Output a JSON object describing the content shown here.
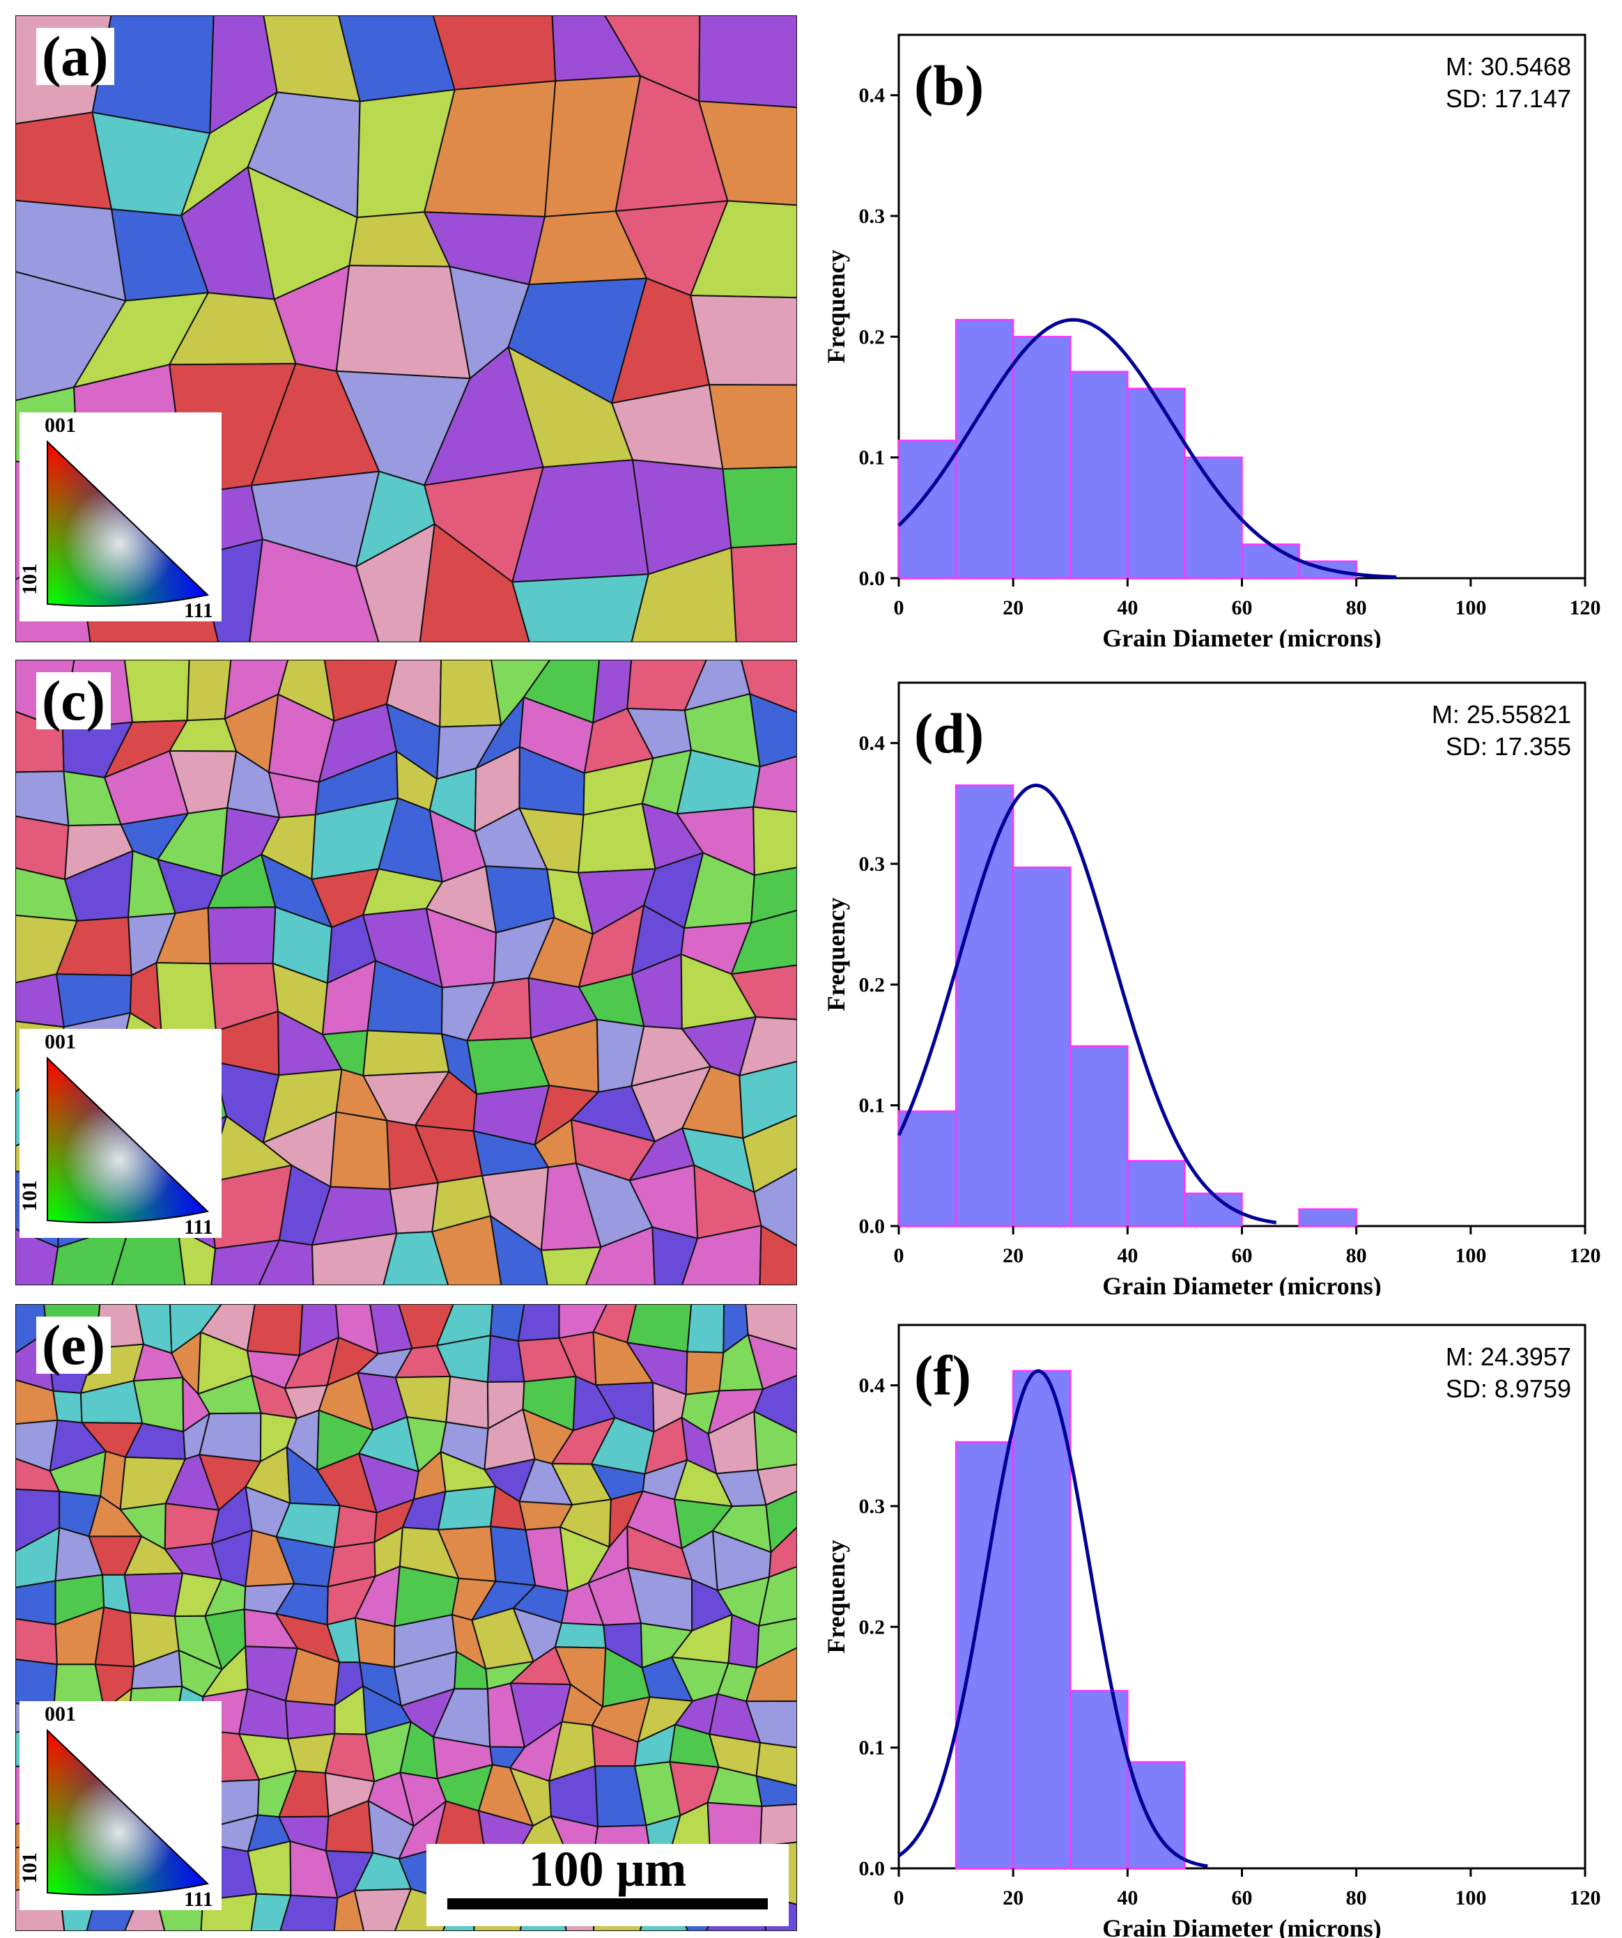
{
  "panels": {
    "a": {
      "label": "(a)"
    },
    "c": {
      "label": "(c)"
    },
    "e": {
      "label": "(e)"
    }
  },
  "ipf_key": {
    "top": "001",
    "left": "101",
    "right": "111"
  },
  "scale_bar": {
    "label": "100 μm"
  },
  "colors": {
    "bar_fill": "#7f7ffb",
    "bar_edge": "#ff33ff",
    "fit_curve": "#000099",
    "axis": "#000000"
  },
  "chart_data": [
    {
      "type": "bar",
      "panel_label": "(b)",
      "stats": {
        "mean": "M: 30.5468",
        "sd": "SD: 17.147"
      },
      "xlabel": "Grain Diameter (microns)",
      "ylabel": "Frequency",
      "xlim": [
        0,
        120
      ],
      "ylim": [
        0,
        0.45
      ],
      "xticks": [
        0,
        20,
        40,
        60,
        80,
        100,
        120
      ],
      "xtick_labels": [
        "0",
        "20",
        "40",
        "60",
        "80",
        "100",
        "120"
      ],
      "yticks": [
        0.0,
        0.1,
        0.2,
        0.3,
        0.4
      ],
      "ytick_labels": [
        "0.0",
        "0.1",
        "0.2",
        "0.3",
        "0.4"
      ],
      "bins": [
        [
          0,
          10
        ],
        [
          10,
          20
        ],
        [
          20,
          30
        ],
        [
          30,
          40
        ],
        [
          40,
          50
        ],
        [
          50,
          60
        ],
        [
          60,
          70
        ],
        [
          70,
          80
        ]
      ],
      "values": [
        0.114,
        0.214,
        0.2,
        0.171,
        0.157,
        0.1,
        0.028,
        0.014
      ],
      "fit": {
        "type": "gaussian",
        "center": 30.5,
        "width": 17.1,
        "peak": 0.214,
        "x_end": 87
      }
    },
    {
      "type": "bar",
      "panel_label": "(d)",
      "stats": {
        "mean": "M: 25.55821",
        "sd": "SD: 17.355"
      },
      "xlabel": "Grain Diameter (microns)",
      "ylabel": "Frequency",
      "xlim": [
        0,
        120
      ],
      "ylim": [
        0,
        0.45
      ],
      "xticks": [
        0,
        20,
        40,
        60,
        80,
        100,
        120
      ],
      "xtick_labels": [
        "0",
        "20",
        "40",
        "60",
        "80",
        "100",
        "120"
      ],
      "yticks": [
        0.0,
        0.1,
        0.2,
        0.3,
        0.4
      ],
      "ytick_labels": [
        "0.0",
        "0.1",
        "0.2",
        "0.3",
        "0.4"
      ],
      "bins": [
        [
          0,
          10
        ],
        [
          10,
          20
        ],
        [
          20,
          30
        ],
        [
          30,
          40
        ],
        [
          40,
          50
        ],
        [
          50,
          60
        ],
        [
          70,
          80
        ]
      ],
      "values": [
        0.095,
        0.365,
        0.297,
        0.149,
        0.054,
        0.027,
        0.014
      ],
      "fit": {
        "type": "gaussian",
        "center": 24,
        "width": 13.5,
        "peak": 0.365,
        "x_end": 66
      }
    },
    {
      "type": "bar",
      "panel_label": "(f)",
      "stats": {
        "mean": "M: 24.3957",
        "sd": "SD: 8.9759"
      },
      "xlabel": "Grain Diameter (microns)",
      "ylabel": "Frequency",
      "xlim": [
        0,
        120
      ],
      "ylim": [
        0,
        0.45
      ],
      "xticks": [
        0,
        20,
        40,
        60,
        80,
        100,
        120
      ],
      "xtick_labels": [
        "0",
        "20",
        "40",
        "60",
        "80",
        "100",
        "120"
      ],
      "yticks": [
        0.0,
        0.1,
        0.2,
        0.3,
        0.4
      ],
      "ytick_labels": [
        "0.0",
        "0.1",
        "0.2",
        "0.3",
        "0.4"
      ],
      "bins": [
        [
          10,
          20
        ],
        [
          20,
          30
        ],
        [
          30,
          40
        ],
        [
          40,
          50
        ]
      ],
      "values": [
        0.353,
        0.412,
        0.147,
        0.088
      ],
      "fit": {
        "type": "gaussian",
        "center": 24.4,
        "width": 9.0,
        "peak": 0.412,
        "x_end": 54
      }
    }
  ]
}
